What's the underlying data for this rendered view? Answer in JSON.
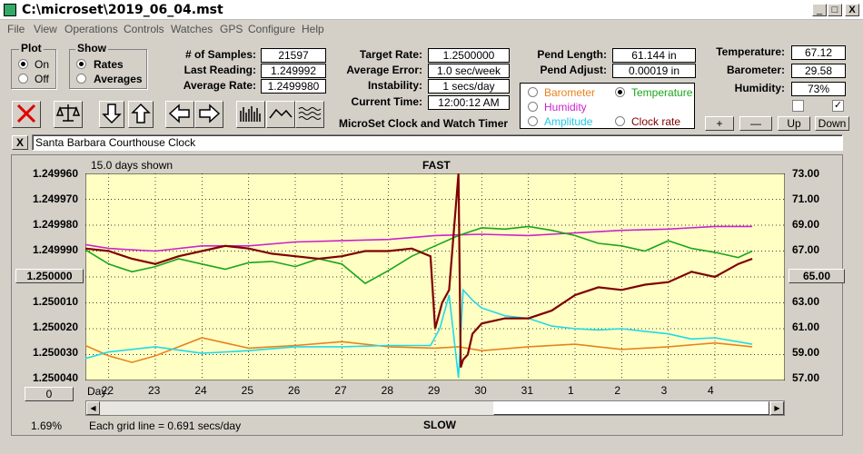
{
  "window": {
    "title": "C:\\microset\\2019_06_04.mst",
    "btn_min": "_",
    "btn_max": "□",
    "btn_close": "X"
  },
  "menu": [
    "File",
    "View",
    "Operations",
    "Controls",
    "Watches",
    "GPS",
    "Configure",
    "Help"
  ],
  "plot_group": {
    "title": "Plot",
    "on": "On",
    "off": "Off",
    "selected": "On"
  },
  "show_group": {
    "title": "Show",
    "rates": "Rates",
    "averages": "Averages",
    "selected": "Rates"
  },
  "stats": {
    "samples_label": "# of Samples:",
    "samples": "21597",
    "last_label": "Last Reading:",
    "last": "1.249992",
    "avg_label": "Average Rate:",
    "avg": "1.2499980"
  },
  "timer": {
    "target_label": "Target Rate:",
    "target": "1.2500000",
    "error_label": "Average Error:",
    "error": "1.0 sec/week",
    "instab_label": "Instability:",
    "instab": "1 secs/day",
    "time_label": "Current Time:",
    "time": "12:00:12 AM",
    "caption": "MicroSet Clock and Watch Timer"
  },
  "pend": {
    "length_label": "Pend Length:",
    "length": "61.144 in",
    "adjust_label": "Pend Adjust:",
    "adjust": "0.00019 in"
  },
  "secondary": {
    "barometer": "Barometer",
    "temperature": "Temperature",
    "humidity": "Humidity",
    "amplitude": "Amplitude",
    "clock_rate": "Clock rate",
    "selected": "Temperature",
    "colors": {
      "barometer": "#e8821e",
      "temperature": "#1aa51a",
      "humidity": "#cc22cc",
      "amplitude": "#22d8e8",
      "clock_rate": "#800000"
    }
  },
  "env": {
    "temp_label": "Temperature:",
    "temp": "67.12",
    "baro_label": "Barometer:",
    "baro": "29.58",
    "hum_label": "Humidity:",
    "hum": "73%",
    "check1": false,
    "check2": true
  },
  "scale_buttons": {
    "plus": "+",
    "minus": "—",
    "up": "Up",
    "down": "Down"
  },
  "watch_name": "Santa Barbara Courthouse Clock",
  "watch_close": "X",
  "chart_texts": {
    "days_shown": "15.0 days shown",
    "fast": "FAST",
    "slow": "SLOW",
    "grid_note": "Each grid line = 0.691 secs/day",
    "percent": "1.69%",
    "day_label": "Day:",
    "left_btn": "1.250000",
    "right_btn": "65.00",
    "zero_btn": "0"
  },
  "chart_data": {
    "type": "line",
    "x_tick_labels": [
      "22",
      "23",
      "24",
      "25",
      "26",
      "27",
      "28",
      "29",
      "30",
      "31",
      "1",
      "2",
      "3",
      "4"
    ],
    "y_left_labels": [
      "1.249960",
      "1.249970",
      "1.249980",
      "1.249990",
      "",
      "1.250010",
      "1.250020",
      "1.250030",
      "1.250040"
    ],
    "y_right_labels": [
      "73.00",
      "71.00",
      "69.00",
      "67.00",
      "",
      "63.00",
      "61.00",
      "59.00",
      "57.00"
    ],
    "xlim": [
      21.5,
      36.5
    ],
    "y_left_lim": [
      1.24996,
      1.25004
    ],
    "y_right_lim": [
      57,
      73
    ],
    "series": [
      {
        "name": "Clock rate",
        "color": "#800000",
        "axis": "left",
        "x": [
          21.5,
          22.0,
          22.5,
          23.0,
          23.5,
          24.0,
          24.5,
          25.0,
          25.5,
          26.0,
          26.5,
          27.0,
          27.5,
          28.0,
          28.5,
          28.9,
          29.0,
          29.15,
          29.3,
          29.5,
          29.55,
          29.6,
          29.7,
          29.8,
          30.0,
          30.5,
          31.0,
          31.5,
          32.0,
          32.5,
          33.0,
          33.5,
          34.0,
          34.5,
          35.0,
          35.5,
          35.8
        ],
        "y": [
          1.249989,
          1.24999,
          1.249993,
          1.249995,
          1.249992,
          1.24999,
          1.249988,
          1.249989,
          1.249991,
          1.249992,
          1.249993,
          1.249992,
          1.24999,
          1.24999,
          1.249989,
          1.249992,
          1.25002,
          1.25001,
          1.250005,
          1.24996,
          1.250035,
          1.250032,
          1.25003,
          1.250022,
          1.250018,
          1.250016,
          1.250016,
          1.250013,
          1.250007,
          1.250004,
          1.250005,
          1.250003,
          1.250002,
          1.249998,
          1.25,
          1.249995,
          1.249993
        ]
      },
      {
        "name": "Temperature",
        "color": "#1aa51a",
        "axis": "right",
        "x": [
          21.5,
          22.0,
          22.5,
          23.0,
          23.5,
          24.0,
          24.5,
          25.0,
          25.5,
          26.0,
          26.5,
          27.0,
          27.5,
          28.0,
          28.5,
          29.0,
          29.5,
          30.0,
          30.5,
          31.0,
          31.5,
          32.0,
          32.5,
          33.0,
          33.5,
          34.0,
          34.5,
          35.0,
          35.5,
          35.8
        ],
        "y": [
          67.1,
          66.0,
          65.4,
          65.8,
          66.4,
          66.0,
          65.6,
          66.1,
          66.2,
          65.8,
          66.4,
          66.0,
          64.5,
          65.5,
          66.6,
          67.4,
          68.2,
          68.8,
          68.7,
          68.9,
          68.6,
          68.2,
          67.6,
          67.4,
          67.0,
          67.8,
          67.2,
          66.9,
          66.5,
          67.0
        ]
      },
      {
        "name": "Humidity",
        "color": "#cc22cc",
        "axis": "right",
        "x": [
          21.5,
          22.0,
          23.0,
          24.0,
          25.0,
          26.0,
          27.0,
          28.0,
          29.0,
          30.0,
          31.0,
          32.0,
          33.0,
          34.0,
          35.0,
          35.8
        ],
        "y": [
          67.5,
          67.2,
          67.0,
          67.4,
          67.4,
          67.7,
          67.8,
          67.9,
          68.2,
          68.3,
          68.2,
          68.4,
          68.6,
          68.7,
          68.9,
          68.9
        ]
      },
      {
        "name": "Amplitude",
        "color": "#22d8e8",
        "axis": "right",
        "x": [
          21.5,
          22.0,
          23.0,
          24.0,
          25.0,
          26.0,
          27.0,
          28.0,
          28.9,
          29.1,
          29.3,
          29.5,
          29.6,
          29.8,
          30.0,
          30.5,
          31.0,
          31.5,
          32.0,
          32.5,
          33.0,
          33.5,
          34.0,
          34.5,
          35.0,
          35.8
        ],
        "y": [
          58.7,
          59.2,
          59.6,
          59.1,
          59.3,
          59.6,
          59.6,
          59.7,
          59.7,
          61.0,
          63.6,
          57.2,
          64.0,
          63.2,
          62.6,
          62.0,
          61.8,
          61.2,
          61.0,
          60.9,
          61.0,
          60.8,
          60.6,
          60.2,
          60.3,
          59.8
        ]
      },
      {
        "name": "Barometer",
        "color": "#e8821e",
        "axis": "right",
        "x": [
          21.5,
          22.0,
          22.5,
          23.0,
          23.5,
          24.0,
          25.0,
          26.0,
          27.0,
          28.0,
          29.0,
          29.5,
          30.0,
          31.0,
          32.0,
          33.0,
          34.0,
          35.0,
          35.8
        ],
        "y": [
          59.7,
          58.9,
          58.4,
          58.9,
          59.6,
          60.3,
          59.5,
          59.7,
          60.0,
          59.6,
          59.5,
          59.6,
          59.3,
          59.6,
          59.8,
          59.4,
          59.6,
          59.9,
          59.6
        ]
      }
    ]
  }
}
